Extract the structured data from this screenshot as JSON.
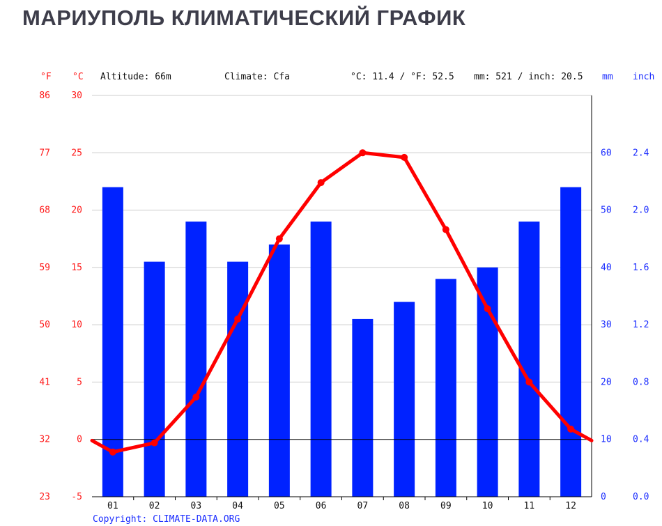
{
  "title": "МАРИУПОЛЬ КЛИМАТИЧЕСКИЙ ГРАФИК",
  "header": {
    "unit_f": "°F",
    "unit_c": "°C",
    "altitude": "Altitude: 66m",
    "climate": "Climate: Cfa",
    "temp_summary": "°C: 11.4 / °F: 52.5",
    "precip_summary": "mm: 521 / inch: 20.5",
    "unit_mm": "mm",
    "unit_inch": "inch"
  },
  "copyright": "Copyright: CLIMATE-DATA.ORG",
  "colors": {
    "temperature": "#ff0000",
    "precipitation": "#0022ff",
    "axis": "#000000",
    "grid": "#cccccc"
  },
  "chart_data": {
    "type": "bar+line",
    "categories": [
      "01",
      "02",
      "03",
      "04",
      "05",
      "06",
      "07",
      "08",
      "09",
      "10",
      "11",
      "12"
    ],
    "series": [
      {
        "type": "bar",
        "axis": "right-mm",
        "values": [
          54,
          41,
          48,
          41,
          44,
          48,
          31,
          34,
          38,
          40,
          48,
          54
        ]
      },
      {
        "type": "line",
        "axis": "left-c",
        "values": [
          -1.1,
          -0.3,
          3.7,
          10.5,
          17.5,
          22.4,
          25.0,
          24.6,
          18.3,
          11.4,
          5.0,
          0.9
        ]
      }
    ],
    "ylim_c": [
      -5,
      30
    ],
    "yticks_c": [
      "-5",
      "0",
      "5",
      "10",
      "15",
      "20",
      "25",
      "30"
    ],
    "yticks_f": [
      "23",
      "32",
      "41",
      "50",
      "59",
      "68",
      "77",
      "86"
    ],
    "ylim_mm": [
      0,
      60
    ],
    "yticks_mm": [
      "0",
      "10",
      "20",
      "30",
      "40",
      "50",
      "60"
    ],
    "yticks_inch": [
      "0.0",
      "0.4",
      "0.8",
      "1.2",
      "1.6",
      "2.0",
      "2.4"
    ],
    "grid": true
  }
}
